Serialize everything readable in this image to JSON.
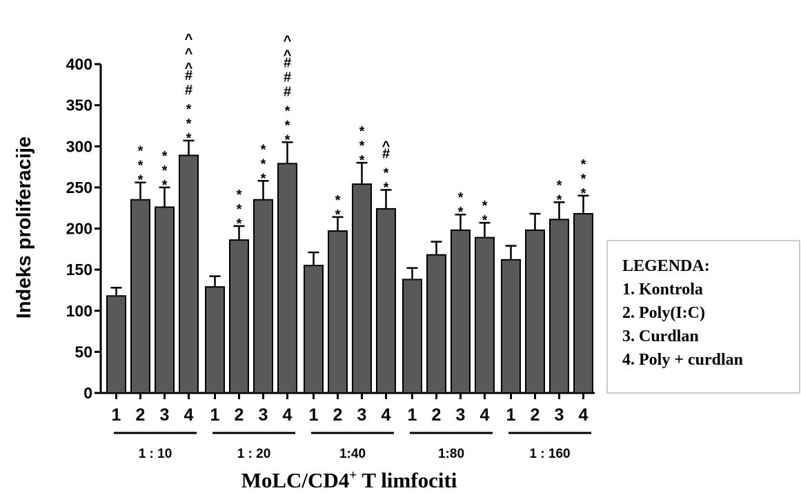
{
  "chart_data": {
    "type": "bar",
    "ylabel": "Indeks proliferacije",
    "xlabel": {
      "main": "MoLC/CD4",
      "superscript": "+",
      "suffix": " T limfociti"
    },
    "ylim": [
      0,
      400
    ],
    "yticks": [
      "0",
      "50",
      "100",
      "150",
      "200",
      "250",
      "300",
      "350",
      "400"
    ],
    "bar_color": "#595959",
    "groups": [
      {
        "label": "1 : 10",
        "bars": [
          {
            "category": "1",
            "value": 118,
            "error": 10,
            "annotation": []
          },
          {
            "category": "2",
            "value": 235,
            "error": 21,
            "annotation": [
              "*",
              "*",
              "*"
            ]
          },
          {
            "category": "3",
            "value": 226,
            "error": 24,
            "annotation": [
              "*",
              "*",
              "*"
            ]
          },
          {
            "category": "4",
            "value": 289,
            "error": 18,
            "annotation": [
              "*",
              "*",
              "*",
              "#",
              "#",
              "^",
              "^",
              "^"
            ]
          }
        ]
      },
      {
        "label": "1 : 20",
        "bars": [
          {
            "category": "1",
            "value": 129,
            "error": 13,
            "annotation": []
          },
          {
            "category": "2",
            "value": 186,
            "error": 17,
            "annotation": [
              "*",
              "*",
              "*"
            ]
          },
          {
            "category": "3",
            "value": 235,
            "error": 23,
            "annotation": [
              "*",
              "*",
              "*"
            ]
          },
          {
            "category": "4",
            "value": 279,
            "error": 26,
            "annotation": [
              "*",
              "*",
              "*",
              "#",
              "#",
              "#",
              "^",
              "^"
            ]
          }
        ]
      },
      {
        "label": "1:40",
        "bars": [
          {
            "category": "1",
            "value": 155,
            "error": 16,
            "annotation": []
          },
          {
            "category": "2",
            "value": 197,
            "error": 17,
            "annotation": [
              "*",
              "*"
            ]
          },
          {
            "category": "3",
            "value": 254,
            "error": 26,
            "annotation": [
              "*",
              "*",
              "*"
            ]
          },
          {
            "category": "4",
            "value": 224,
            "error": 23,
            "annotation": [
              "*",
              "*",
              "#",
              "^"
            ]
          }
        ]
      },
      {
        "label": "1:80",
        "bars": [
          {
            "category": "1",
            "value": 138,
            "error": 14,
            "annotation": []
          },
          {
            "category": "2",
            "value": 168,
            "error": 16,
            "annotation": []
          },
          {
            "category": "3",
            "value": 198,
            "error": 19,
            "annotation": [
              "*",
              "*"
            ]
          },
          {
            "category": "4",
            "value": 189,
            "error": 18,
            "annotation": [
              "*",
              "*"
            ]
          }
        ]
      },
      {
        "label": "1 : 160",
        "bars": [
          {
            "category": "1",
            "value": 162,
            "error": 17,
            "annotation": []
          },
          {
            "category": "2",
            "value": 198,
            "error": 20,
            "annotation": []
          },
          {
            "category": "3",
            "value": 211,
            "error": 21,
            "annotation": [
              "*",
              "*"
            ]
          },
          {
            "category": "4",
            "value": 218,
            "error": 22,
            "annotation": [
              "*",
              "*",
              "*"
            ]
          }
        ]
      }
    ],
    "legend": {
      "title": "LEGENDA:",
      "items": [
        "1. Kontrola",
        "2. Poly(I:C)",
        "3. Curdlan",
        "4. Poly + curdlan"
      ]
    }
  }
}
